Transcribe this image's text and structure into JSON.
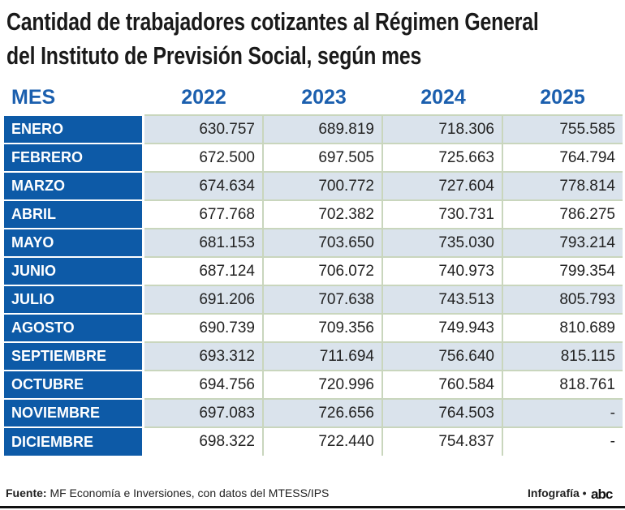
{
  "title": {
    "line1": "Cantidad de trabajadores cotizantes al Régimen General",
    "line2": "del Instituto de Previsión Social, según mes"
  },
  "table": {
    "headers": [
      "MES",
      "2022",
      "2023",
      "2024",
      "2025"
    ],
    "rows": [
      {
        "mes": "ENERO",
        "values": [
          "630.757",
          "689.819",
          "718.306",
          "755.585"
        ]
      },
      {
        "mes": "FEBRERO",
        "values": [
          "672.500",
          "697.505",
          "725.663",
          "764.794"
        ]
      },
      {
        "mes": "MARZO",
        "values": [
          "674.634",
          "700.772",
          "727.604",
          "778.814"
        ]
      },
      {
        "mes": "ABRIL",
        "values": [
          "677.768",
          "702.382",
          "730.731",
          "786.275"
        ]
      },
      {
        "mes": "MAYO",
        "values": [
          "681.153",
          "703.650",
          "735.030",
          "793.214"
        ]
      },
      {
        "mes": "JUNIO",
        "values": [
          "687.124",
          "706.072",
          "740.973",
          "799.354"
        ]
      },
      {
        "mes": "JULIO",
        "values": [
          "691.206",
          "707.638",
          "743.513",
          "805.793"
        ]
      },
      {
        "mes": "AGOSTO",
        "values": [
          "690.739",
          "709.356",
          "749.943",
          "810.689"
        ]
      },
      {
        "mes": "SEPTIEMBRE",
        "values": [
          "693.312",
          "711.694",
          "756.640",
          "815.115"
        ]
      },
      {
        "mes": "OCTUBRE",
        "values": [
          "694.756",
          "720.996",
          "760.584",
          "818.761"
        ]
      },
      {
        "mes": "NOVIEMBRE",
        "values": [
          "697.083",
          "726.656",
          "764.503",
          "-"
        ]
      },
      {
        "mes": "DICIEMBRE",
        "values": [
          "698.322",
          "722.440",
          "754.837",
          "-"
        ]
      }
    ]
  },
  "footer": {
    "source_label": "Fuente:",
    "source_text": "MF Economía e Inversiones, con datos del MTESS/IPS",
    "credit": "Infografía •",
    "logo": "abc"
  },
  "colors": {
    "month_bg": "#0d5aa7",
    "header_text": "#1b5fae",
    "stripe": "#dae3ec"
  }
}
